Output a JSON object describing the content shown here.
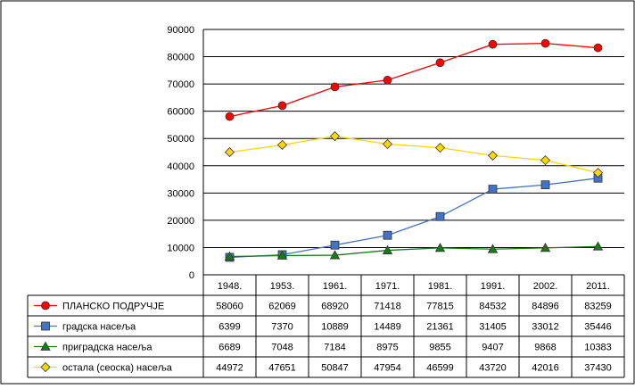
{
  "chart_data": {
    "type": "line",
    "title": "",
    "xlabel": "",
    "ylabel": "",
    "ylim": [
      0,
      90000
    ],
    "yticks": [
      "0",
      "10000",
      "20000",
      "30000",
      "40000",
      "50000",
      "60000",
      "70000",
      "80000",
      "90000"
    ],
    "grid": "horizontal",
    "legend": "data-table-left",
    "categories": [
      "1948.",
      "1953.",
      "1961.",
      "1971.",
      "1981.",
      "1991.",
      "2002.",
      "2011."
    ],
    "series": [
      {
        "name": "ПЛАНСКО ПОДРУЧЈЕ",
        "color": "#ff0000",
        "marker": "circle",
        "values": [
          58060,
          62069,
          68920,
          71418,
          77815,
          84532,
          84896,
          83259
        ]
      },
      {
        "name": "градска насеља",
        "color": "#4472c4",
        "marker": "square",
        "values": [
          6399,
          7370,
          10889,
          14489,
          21361,
          31405,
          33012,
          35446
        ]
      },
      {
        "name": "приградска насеља",
        "color": "#1a7a1a",
        "marker": "triangle",
        "values": [
          6689,
          7048,
          7184,
          8975,
          9855,
          9407,
          9868,
          10383
        ]
      },
      {
        "name": "остала (сеоска) насеља",
        "color": "#ffd700",
        "marker": "diamond",
        "values": [
          44972,
          47651,
          50847,
          47954,
          46599,
          43720,
          42016,
          37430
        ]
      }
    ]
  }
}
